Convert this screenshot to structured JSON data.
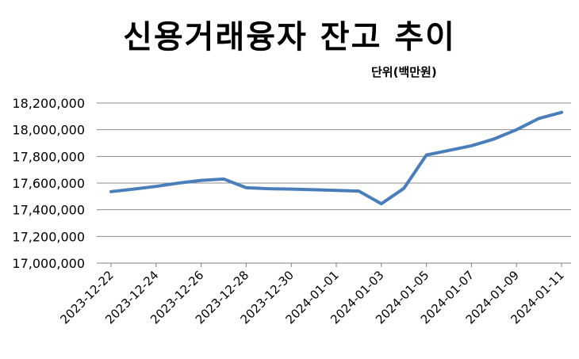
{
  "chart_data": {
    "type": "line",
    "title": "신용거래융자 잔고 추이",
    "unit_label": "단위(백만원)",
    "xlabel": "",
    "ylabel": "",
    "ylim": [
      17000000,
      18200000
    ],
    "yticks": [
      17000000,
      17200000,
      17400000,
      17600000,
      17800000,
      18000000,
      18200000
    ],
    "ytick_labels": [
      "17,000,000",
      "17,200,000",
      "17,400,000",
      "17,600,000",
      "17,800,000",
      "18,000,000",
      "18,200,000"
    ],
    "xlim": [
      "2023-12-22",
      "2024-01-11"
    ],
    "xtick_labels": [
      "2023-12-22",
      "2023-12-24",
      "2023-12-26",
      "2023-12-28",
      "2023-12-30",
      "2024-01-01",
      "2024-01-03",
      "2024-01-05",
      "2024-01-07",
      "2024-01-09",
      "2024-01-11"
    ],
    "grid": true,
    "line_color": "#4a7ebb",
    "series": [
      {
        "x": [
          "2023-12-22",
          "2023-12-23",
          "2023-12-24",
          "2023-12-25",
          "2023-12-26",
          "2023-12-27",
          "2023-12-28",
          "2023-12-29",
          "2023-12-30",
          "2023-12-31",
          "2024-01-01",
          "2024-01-02",
          "2024-01-03",
          "2024-01-04",
          "2024-01-05",
          "2024-01-06",
          "2024-01-07",
          "2024-01-08",
          "2024-01-09",
          "2024-01-10",
          "2024-01-11"
        ],
        "values": [
          17536000,
          17555000,
          17575000,
          17600000,
          17620000,
          17630000,
          17565000,
          17558000,
          17555000,
          17550000,
          17545000,
          17540000,
          17445000,
          17560000,
          17810000,
          17845000,
          17880000,
          17930000,
          18000000,
          18085000,
          18130000
        ]
      }
    ]
  }
}
